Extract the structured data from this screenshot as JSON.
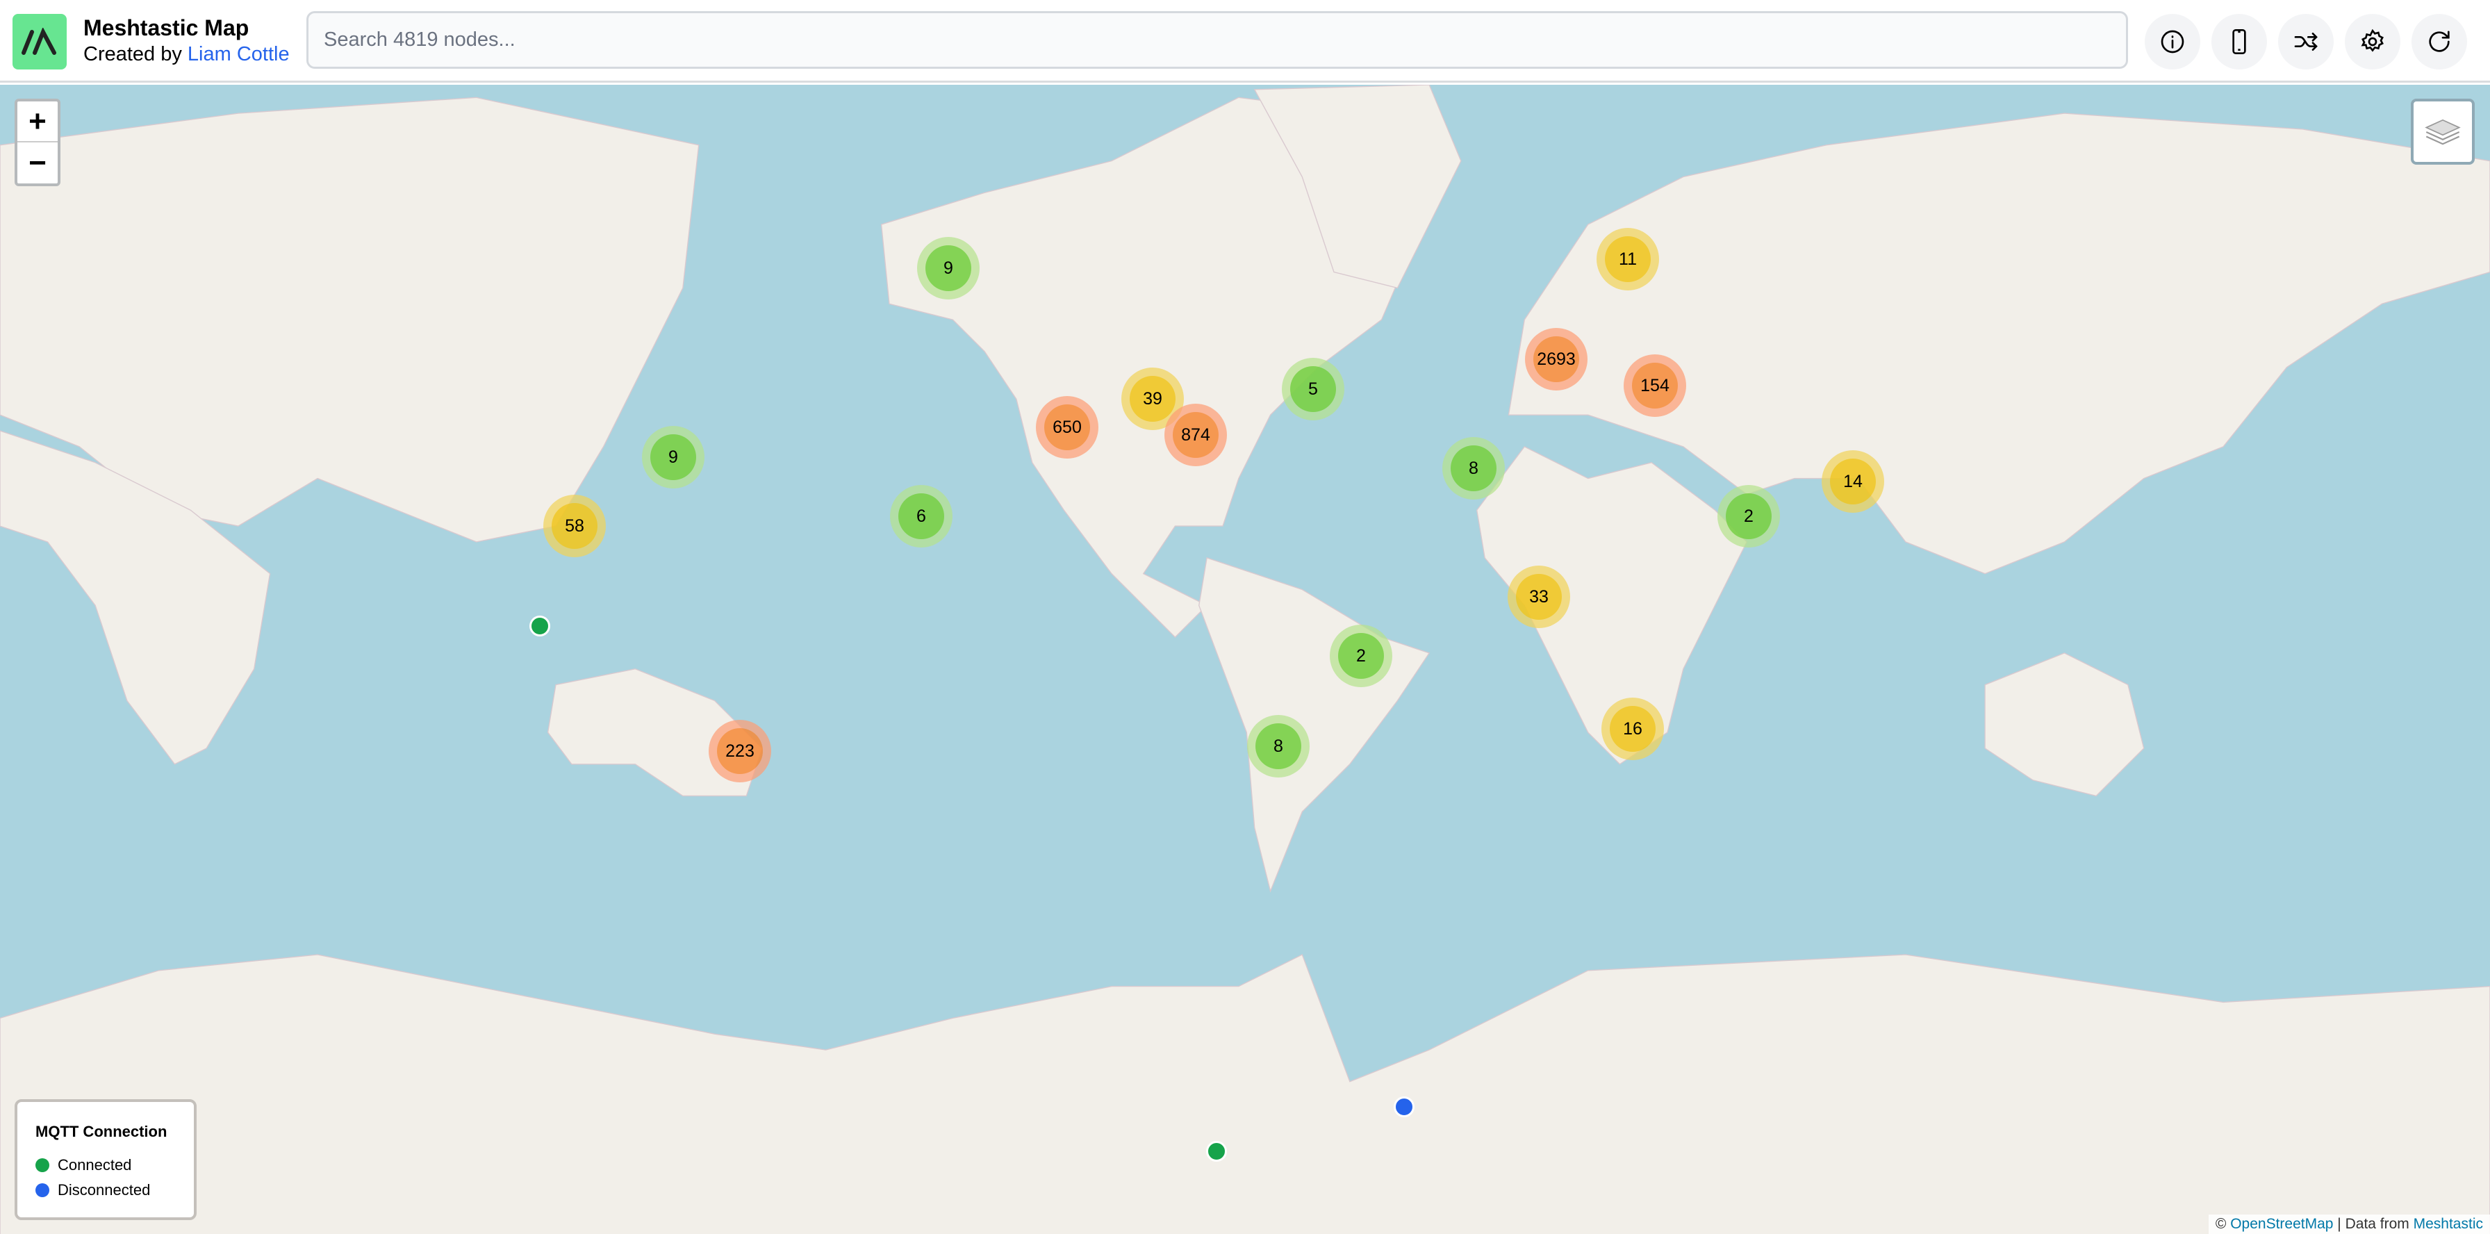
{
  "header": {
    "title": "Meshtastic Map",
    "subtitle_prefix": "Created by ",
    "author": "Liam Cottle",
    "search_placeholder": "Search 4819 nodes...",
    "buttons": [
      {
        "name": "info-button",
        "icon": "info-icon"
      },
      {
        "name": "device-button",
        "icon": "phone-icon"
      },
      {
        "name": "shuffle-button",
        "icon": "shuffle-icon"
      },
      {
        "name": "settings-button",
        "icon": "gear-icon"
      },
      {
        "name": "refresh-button",
        "icon": "refresh-icon"
      }
    ]
  },
  "map": {
    "zoom_in": "+",
    "zoom_out": "−",
    "colors": {
      "ocean": "#aad3df",
      "land": "#f2efe9",
      "connected": "#16a34a",
      "disconnected": "#2563eb"
    },
    "clusters": [
      {
        "count": "9",
        "level": "green"
      },
      {
        "count": "11",
        "level": "yellow"
      },
      {
        "count": "2693",
        "level": "orange"
      },
      {
        "count": "154",
        "level": "orange"
      },
      {
        "count": "5",
        "level": "green"
      },
      {
        "count": "39",
        "level": "yellow"
      },
      {
        "count": "650",
        "level": "orange"
      },
      {
        "count": "874",
        "level": "orange"
      },
      {
        "count": "9",
        "level": "green"
      },
      {
        "count": "8",
        "level": "green"
      },
      {
        "count": "14",
        "level": "yellow"
      },
      {
        "count": "58",
        "level": "yellow"
      },
      {
        "count": "6",
        "level": "green"
      },
      {
        "count": "2",
        "level": "green"
      },
      {
        "count": "33",
        "level": "yellow"
      },
      {
        "count": "2",
        "level": "green"
      },
      {
        "count": "223",
        "level": "orange"
      },
      {
        "count": "8",
        "level": "green"
      },
      {
        "count": "16",
        "level": "yellow"
      }
    ],
    "nodes": [
      {
        "status": "connected"
      },
      {
        "status": "disconnected"
      },
      {
        "status": "connected"
      }
    ]
  },
  "legend": {
    "title": "MQTT Connection",
    "connected": "Connected",
    "disconnected": "Disconnected"
  },
  "attribution": {
    "copyright": "© ",
    "osm": "OpenStreetMap",
    "sep": " | Data from ",
    "meshtastic": "Meshtastic"
  }
}
